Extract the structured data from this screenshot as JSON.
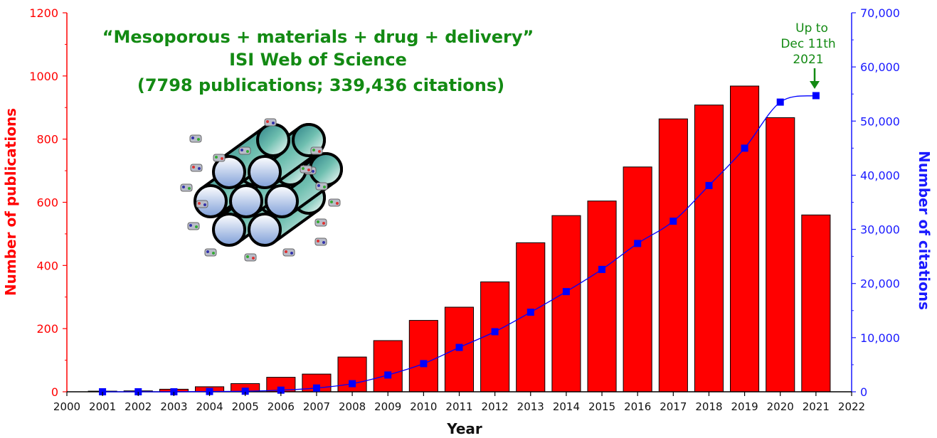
{
  "chart_data": {
    "type": "bar",
    "title_lines": [
      "“Mesoporous + materials + drug + delivery”",
      "ISI Web of Science",
      "(7798 publications; 339,436 citations)"
    ],
    "annotation_lines": [
      "Up to",
      "Dec 11th",
      "2021"
    ],
    "xlabel": "Year",
    "ylabel": "Number of publications",
    "ylabel_right": "Number of citations",
    "xlim": [
      2000,
      2022
    ],
    "x_ticks": [
      "2000",
      "2001",
      "2002",
      "2003",
      "2004",
      "2005",
      "2006",
      "2007",
      "2008",
      "2009",
      "2010",
      "2011",
      "2012",
      "2013",
      "2014",
      "2015",
      "2016",
      "2017",
      "2018",
      "2019",
      "2020",
      "2021",
      "2022"
    ],
    "ylim": [
      0,
      1200
    ],
    "y_ticks": [
      "0",
      "200",
      "400",
      "600",
      "800",
      "1000",
      "1200"
    ],
    "ylim_right": [
      0,
      70000
    ],
    "y_ticks_right": [
      "0",
      "10,000",
      "20,000",
      "30,000",
      "40,000",
      "50,000",
      "60,000",
      "70,000"
    ],
    "categories": [
      "2001",
      "2002",
      "2003",
      "2004",
      "2005",
      "2006",
      "2007",
      "2008",
      "2009",
      "2010",
      "2011",
      "2012",
      "2013",
      "2014",
      "2015",
      "2016",
      "2017",
      "2018",
      "2019",
      "2020",
      "2021"
    ],
    "series": [
      {
        "axis": "left",
        "kind": "bar",
        "color": "#ff0000",
        "values": [
          2,
          3,
          8,
          16,
          26,
          46,
          56,
          110,
          162,
          226,
          268,
          348,
          472,
          558,
          604,
          712,
          864,
          908,
          968,
          868,
          560
        ]
      },
      {
        "axis": "right",
        "kind": "line",
        "color": "#0000ff",
        "values": [
          0,
          0,
          0,
          50,
          100,
          300,
          700,
          1500,
          3100,
          5200,
          8200,
          11100,
          14700,
          18500,
          22600,
          27400,
          31500,
          38100,
          45000,
          53500,
          54700
        ]
      }
    ],
    "grid": false
  }
}
